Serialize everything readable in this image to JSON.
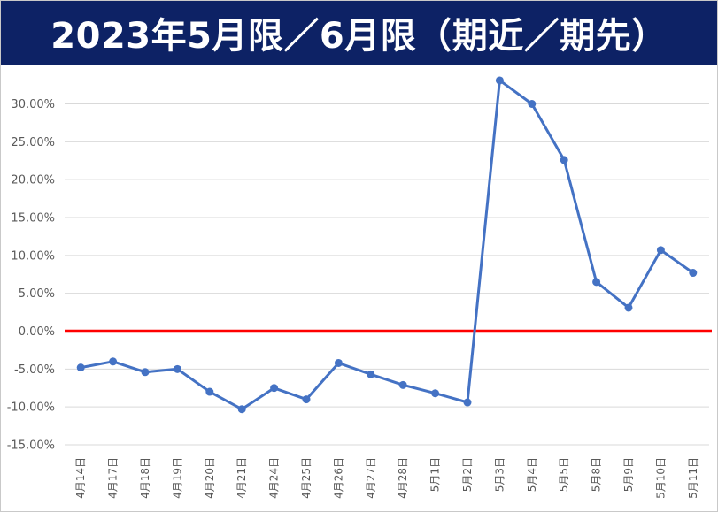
{
  "chart_data": {
    "type": "line",
    "title": "2023年5月限／6月限（期近／期先）",
    "xlabel": "",
    "ylabel": "",
    "categories": [
      "4月14日",
      "4月17日",
      "4月18日",
      "4月19日",
      "4月20日",
      "4月21日",
      "4月24日",
      "4月25日",
      "4月26日",
      "4月27日",
      "4月28日",
      "5月1日",
      "5月2日",
      "5月3日",
      "5月4日",
      "5月5日",
      "5月8日",
      "5月9日",
      "5月10日",
      "5月11日"
    ],
    "series": [
      {
        "values": [
          -4.8,
          -4.0,
          -5.4,
          -5.0,
          -8.0,
          -10.3,
          -7.5,
          -9.0,
          -4.2,
          -5.7,
          -7.1,
          -8.2,
          -9.4,
          33.1,
          30.0,
          22.6,
          6.5,
          3.1,
          10.7,
          7.7
        ],
        "color": "#4472c4"
      }
    ],
    "ylim": [
      -15,
      35
    ],
    "yticks": [
      30,
      25,
      20,
      15,
      10,
      5,
      0,
      -5,
      -10,
      -15
    ],
    "ytick_labels": [
      "30.00%",
      "25.00%",
      "20.00%",
      "15.00%",
      "10.00%",
      "5.00%",
      "0.00%",
      "-5.00%",
      "-10.00%",
      "-15.00%"
    ],
    "zero_line": {
      "value": 0,
      "color": "#ff0000"
    },
    "grid": true,
    "legend": "none",
    "colors": {
      "title_bg": "#0d2265",
      "title_fg": "#ffffff",
      "line": "#4472c4",
      "zero_line": "#ff0000",
      "grid": "#d9d9d9"
    }
  }
}
